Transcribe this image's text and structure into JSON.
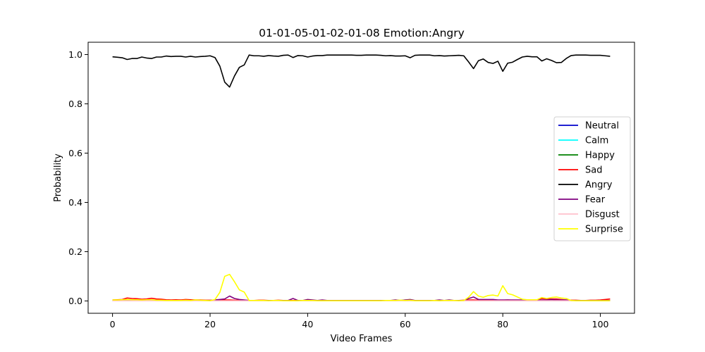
{
  "chart_data": {
    "type": "line",
    "title": "01-01-05-01-02-01-08 Emotion:Angry",
    "xlabel": "Video Frames",
    "ylabel": "Probability",
    "xlim": [
      -5,
      107
    ],
    "ylim": [
      -0.05,
      1.05
    ],
    "xticks": [
      0,
      20,
      40,
      60,
      80,
      100
    ],
    "yticks": [
      0.0,
      0.2,
      0.4,
      0.6,
      0.8,
      1.0
    ],
    "ytick_labels": [
      "0.0",
      "0.2",
      "0.4",
      "0.6",
      "0.8",
      "1.0"
    ],
    "grid": false,
    "legend_position": "center-right",
    "x_start": 0,
    "x_end": 102,
    "series": [
      {
        "name": "Neutral",
        "color": "#0000cc",
        "values": [
          0.001,
          0.001,
          0.001,
          0.001,
          0.001,
          0.001,
          0.001,
          0.001,
          0.001,
          0.001,
          0.001,
          0.001,
          0.001,
          0.001,
          0.001,
          0.001,
          0.001,
          0.001,
          0.001,
          0.001,
          0.001,
          0.001,
          0.001,
          0.001,
          0.001,
          0.001,
          0.001,
          0.001,
          0.001,
          0.001,
          0.001,
          0.001,
          0.001,
          0.001,
          0.001,
          0.001,
          0.001,
          0.001,
          0.001,
          0.001,
          0.001,
          0.001,
          0.001,
          0.001,
          0.001,
          0.001,
          0.001,
          0.001,
          0.001,
          0.001,
          0.001,
          0.001,
          0.001,
          0.001,
          0.001,
          0.001,
          0.001,
          0.001,
          0.001,
          0.001,
          0.001,
          0.001,
          0.001,
          0.001,
          0.001,
          0.001,
          0.001,
          0.001,
          0.001,
          0.001,
          0.001,
          0.001,
          0.001,
          0.001,
          0.001,
          0.001,
          0.001,
          0.001,
          0.001,
          0.001,
          0.001,
          0.001,
          0.001,
          0.001,
          0.001,
          0.001,
          0.001,
          0.001,
          0.001,
          0.001,
          0.001,
          0.001,
          0.001,
          0.001,
          0.001,
          0.001,
          0.001,
          0.001,
          0.001,
          0.001,
          0.001,
          0.001,
          0.001
        ]
      },
      {
        "name": "Calm",
        "color": "#00ffff",
        "values": [
          0.001,
          0.001,
          0.001,
          0.001,
          0.001,
          0.001,
          0.001,
          0.001,
          0.001,
          0.001,
          0.001,
          0.001,
          0.001,
          0.001,
          0.001,
          0.001,
          0.001,
          0.001,
          0.001,
          0.001,
          0.001,
          0.001,
          0.001,
          0.001,
          0.001,
          0.001,
          0.001,
          0.001,
          0.001,
          0.001,
          0.001,
          0.001,
          0.001,
          0.001,
          0.001,
          0.001,
          0.001,
          0.001,
          0.001,
          0.001,
          0.001,
          0.001,
          0.001,
          0.001,
          0.001,
          0.001,
          0.001,
          0.001,
          0.001,
          0.001,
          0.001,
          0.001,
          0.001,
          0.001,
          0.001,
          0.001,
          0.001,
          0.001,
          0.001,
          0.001,
          0.001,
          0.001,
          0.001,
          0.001,
          0.001,
          0.001,
          0.001,
          0.001,
          0.001,
          0.001,
          0.001,
          0.001,
          0.001,
          0.001,
          0.001,
          0.001,
          0.001,
          0.001,
          0.001,
          0.001,
          0.001,
          0.001,
          0.001,
          0.001,
          0.001,
          0.001,
          0.001,
          0.001,
          0.001,
          0.001,
          0.001,
          0.001,
          0.001,
          0.001,
          0.001,
          0.001,
          0.001,
          0.001,
          0.001,
          0.001,
          0.001,
          0.001,
          0.001
        ]
      },
      {
        "name": "Happy",
        "color": "#008000",
        "values": [
          0.001,
          0.001,
          0.001,
          0.001,
          0.001,
          0.001,
          0.001,
          0.001,
          0.001,
          0.001,
          0.001,
          0.001,
          0.001,
          0.001,
          0.001,
          0.001,
          0.001,
          0.001,
          0.001,
          0.001,
          0.001,
          0.001,
          0.001,
          0.001,
          0.001,
          0.001,
          0.001,
          0.001,
          0.001,
          0.001,
          0.001,
          0.001,
          0.001,
          0.001,
          0.001,
          0.001,
          0.001,
          0.001,
          0.001,
          0.001,
          0.001,
          0.001,
          0.001,
          0.001,
          0.001,
          0.001,
          0.001,
          0.001,
          0.001,
          0.001,
          0.001,
          0.001,
          0.001,
          0.001,
          0.001,
          0.001,
          0.001,
          0.001,
          0.001,
          0.001,
          0.001,
          0.001,
          0.001,
          0.001,
          0.001,
          0.001,
          0.001,
          0.001,
          0.001,
          0.001,
          0.001,
          0.001,
          0.001,
          0.001,
          0.001,
          0.001,
          0.001,
          0.001,
          0.001,
          0.001,
          0.001,
          0.001,
          0.001,
          0.001,
          0.001,
          0.001,
          0.001,
          0.001,
          0.001,
          0.001,
          0.001,
          0.001,
          0.001,
          0.001,
          0.001,
          0.001,
          0.001,
          0.001,
          0.001,
          0.001,
          0.001,
          0.001,
          0.001
        ]
      },
      {
        "name": "Sad",
        "color": "#ff0000",
        "values": [
          0.004,
          0.005,
          0.006,
          0.012,
          0.01,
          0.009,
          0.007,
          0.008,
          0.011,
          0.008,
          0.007,
          0.005,
          0.004,
          0.005,
          0.004,
          0.006,
          0.005,
          0.004,
          0.004,
          0.003,
          0.003,
          0.003,
          0.003,
          0.004,
          0.004,
          0.003,
          0.003,
          0.003,
          0.002,
          0.002,
          0.003,
          0.003,
          0.002,
          0.002,
          0.003,
          0.002,
          0.002,
          0.002,
          0.002,
          0.002,
          0.002,
          0.002,
          0.002,
          0.002,
          0.002,
          0.002,
          0.002,
          0.002,
          0.002,
          0.002,
          0.002,
          0.002,
          0.002,
          0.002,
          0.002,
          0.002,
          0.002,
          0.002,
          0.002,
          0.002,
          0.002,
          0.002,
          0.002,
          0.002,
          0.002,
          0.002,
          0.002,
          0.002,
          0.002,
          0.002,
          0.002,
          0.002,
          0.003,
          0.004,
          0.004,
          0.003,
          0.003,
          0.003,
          0.003,
          0.003,
          0.003,
          0.004,
          0.003,
          0.003,
          0.003,
          0.004,
          0.004,
          0.004,
          0.01,
          0.008,
          0.008,
          0.008,
          0.006,
          0.004,
          0.003,
          0.003,
          0.002,
          0.002,
          0.003,
          0.003,
          0.004,
          0.006,
          0.008
        ]
      },
      {
        "name": "Angry",
        "color": "#000000",
        "values": [
          0.991,
          0.989,
          0.987,
          0.98,
          0.984,
          0.984,
          0.99,
          0.986,
          0.984,
          0.99,
          0.99,
          0.994,
          0.992,
          0.993,
          0.993,
          0.99,
          0.993,
          0.99,
          0.992,
          0.993,
          0.995,
          0.988,
          0.953,
          0.888,
          0.868,
          0.913,
          0.948,
          0.958,
          0.998,
          0.995,
          0.995,
          0.993,
          0.996,
          0.994,
          0.993,
          0.997,
          0.998,
          0.988,
          0.996,
          0.995,
          0.99,
          0.994,
          0.996,
          0.996,
          0.998,
          0.998,
          0.998,
          0.998,
          0.998,
          0.998,
          0.997,
          0.997,
          0.998,
          0.998,
          0.998,
          0.997,
          0.995,
          0.996,
          0.994,
          0.994,
          0.995,
          0.987,
          0.997,
          0.998,
          0.998,
          0.998,
          0.995,
          0.996,
          0.994,
          0.995,
          0.996,
          0.997,
          0.995,
          0.97,
          0.943,
          0.975,
          0.982,
          0.968,
          0.964,
          0.973,
          0.932,
          0.965,
          0.969,
          0.98,
          0.99,
          0.993,
          0.991,
          0.991,
          0.974,
          0.983,
          0.976,
          0.967,
          0.968,
          0.984,
          0.996,
          0.998,
          0.998,
          0.998,
          0.997,
          0.997,
          0.997,
          0.995,
          0.993
        ]
      },
      {
        "name": "Fear",
        "color": "#800080",
        "values": [
          0.001,
          0.001,
          0.001,
          0.001,
          0.001,
          0.001,
          0.001,
          0.001,
          0.001,
          0.001,
          0.001,
          0.001,
          0.001,
          0.001,
          0.001,
          0.001,
          0.001,
          0.001,
          0.001,
          0.001,
          0.002,
          0.004,
          0.006,
          0.008,
          0.02,
          0.01,
          0.006,
          0.004,
          0.002,
          0.002,
          0.002,
          0.002,
          0.002,
          0.002,
          0.002,
          0.002,
          0.002,
          0.01,
          0.002,
          0.002,
          0.006,
          0.004,
          0.002,
          0.004,
          0.002,
          0.002,
          0.002,
          0.002,
          0.002,
          0.002,
          0.002,
          0.002,
          0.002,
          0.002,
          0.002,
          0.002,
          0.002,
          0.002,
          0.004,
          0.002,
          0.004,
          0.006,
          0.002,
          0.002,
          0.002,
          0.002,
          0.002,
          0.004,
          0.002,
          0.004,
          0.002,
          0.002,
          0.002,
          0.01,
          0.016,
          0.006,
          0.006,
          0.006,
          0.006,
          0.004,
          0.004,
          0.004,
          0.004,
          0.004,
          0.004,
          0.002,
          0.002,
          0.002,
          0.004,
          0.004,
          0.006,
          0.004,
          0.004,
          0.004,
          0.002,
          0.002,
          0.002,
          0.002,
          0.002,
          0.002,
          0.002,
          0.002,
          0.002
        ]
      },
      {
        "name": "Disgust",
        "color": "#ffc0cb",
        "values": [
          0.001,
          0.001,
          0.001,
          0.001,
          0.001,
          0.001,
          0.001,
          0.001,
          0.001,
          0.001,
          0.001,
          0.001,
          0.001,
          0.001,
          0.001,
          0.001,
          0.001,
          0.001,
          0.001,
          0.001,
          0.001,
          0.001,
          0.001,
          0.001,
          0.001,
          0.001,
          0.001,
          0.001,
          0.001,
          0.001,
          0.001,
          0.001,
          0.001,
          0.001,
          0.001,
          0.001,
          0.001,
          0.001,
          0.001,
          0.001,
          0.001,
          0.001,
          0.001,
          0.001,
          0.001,
          0.001,
          0.001,
          0.001,
          0.001,
          0.001,
          0.001,
          0.001,
          0.001,
          0.001,
          0.001,
          0.001,
          0.001,
          0.001,
          0.001,
          0.001,
          0.001,
          0.001,
          0.001,
          0.001,
          0.001,
          0.001,
          0.001,
          0.001,
          0.001,
          0.001,
          0.001,
          0.001,
          0.001,
          0.001,
          0.001,
          0.001,
          0.001,
          0.001,
          0.001,
          0.001,
          0.001,
          0.001,
          0.001,
          0.001,
          0.001,
          0.001,
          0.001,
          0.001,
          0.001,
          0.001,
          0.001,
          0.001,
          0.001,
          0.001,
          0.001,
          0.001,
          0.001,
          0.001,
          0.001,
          0.001,
          0.001,
          0.001,
          0.001
        ]
      },
      {
        "name": "Surprise",
        "color": "#ffff00",
        "values": [
          0.004,
          0.004,
          0.005,
          0.006,
          0.005,
          0.005,
          0.004,
          0.005,
          0.005,
          0.003,
          0.003,
          0.002,
          0.002,
          0.002,
          0.002,
          0.003,
          0.002,
          0.004,
          0.003,
          0.002,
          0.001,
          0.006,
          0.035,
          0.1,
          0.108,
          0.078,
          0.045,
          0.036,
          0.002,
          0.002,
          0.002,
          0.002,
          0.001,
          0.002,
          0.002,
          0.001,
          0.001,
          0.001,
          0.001,
          0.002,
          0.002,
          0.002,
          0.001,
          0.001,
          0.001,
          0.001,
          0.001,
          0.001,
          0.001,
          0.001,
          0.001,
          0.001,
          0.001,
          0.001,
          0.001,
          0.001,
          0.002,
          0.002,
          0.002,
          0.003,
          0.002,
          0.003,
          0.001,
          0.001,
          0.001,
          0.001,
          0.002,
          0.001,
          0.002,
          0.002,
          0.002,
          0.001,
          0.002,
          0.015,
          0.038,
          0.02,
          0.015,
          0.022,
          0.024,
          0.02,
          0.062,
          0.03,
          0.025,
          0.016,
          0.007,
          0.005,
          0.005,
          0.005,
          0.014,
          0.01,
          0.014,
          0.016,
          0.012,
          0.01,
          0.002,
          0.001,
          0.001,
          0.001,
          0.001,
          0.001,
          0.001,
          0.001,
          0.001
        ]
      }
    ]
  }
}
